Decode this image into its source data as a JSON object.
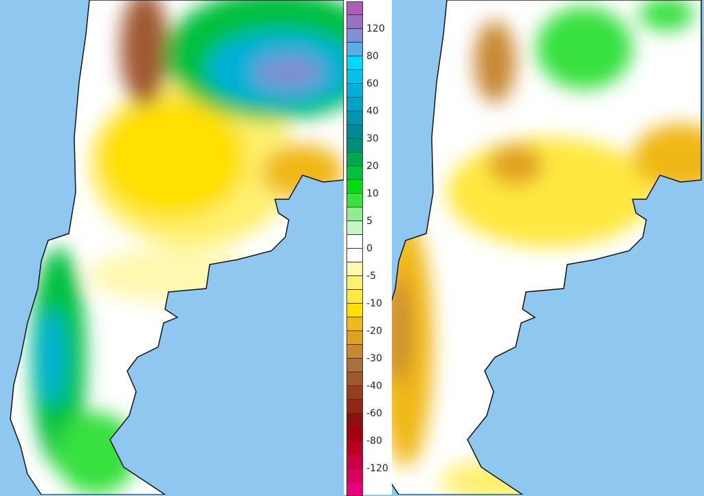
{
  "left_map": {
    "ocean_color": "#8ec8f0"
  },
  "right_map": {
    "ocean_color": "#8ec8f0"
  },
  "colorbar": {
    "colors": [
      "#b05cb8",
      "#9a72c4",
      "#7f8fd2",
      "#5aaee6",
      "#00d8f8",
      "#00c2ea",
      "#00b0d8",
      "#00a4c6",
      "#0096b0",
      "#008a98",
      "#009078",
      "#00a850",
      "#00c040",
      "#00dc10",
      "#38e040",
      "#90ec90",
      "#c8f4c8",
      "#ffffff",
      "#ffffff",
      "#fff8b0",
      "#fff070",
      "#ffe840",
      "#ffe000",
      "#f0b818",
      "#e0a020",
      "#c88830",
      "#a87040",
      "#a05830",
      "#983c20",
      "#902818",
      "#8c1010",
      "#a00010",
      "#b80020",
      "#c80040",
      "#d8005c",
      "#e8007a"
    ],
    "labels": [
      "120",
      "80",
      "60",
      "40",
      "30",
      "20",
      "10",
      "5",
      "0",
      "-5",
      "-10",
      "-20",
      "-30",
      "-40",
      "-60",
      "-80",
      "-120"
    ]
  }
}
